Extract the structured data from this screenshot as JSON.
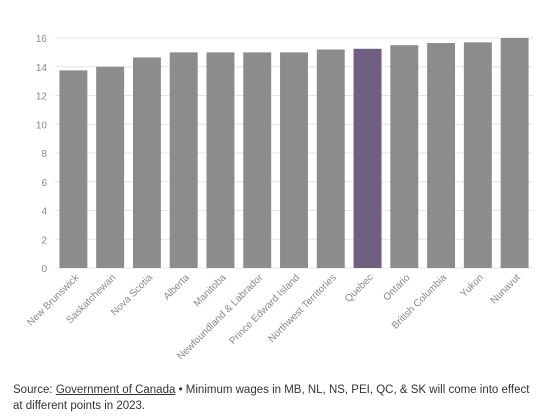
{
  "chart_data": {
    "type": "bar",
    "title": "",
    "xlabel": "",
    "ylabel": "",
    "ylim": [
      0,
      16
    ],
    "yticks": [
      0,
      2,
      4,
      6,
      8,
      10,
      12,
      14,
      16
    ],
    "grid": true,
    "categories": [
      "New Brunswick",
      "Saskatchewan",
      "Nova Scotia",
      "Alberta",
      "Manitoba",
      "Newfoundland & Labrador",
      "Prince Edward Island",
      "Northwest Territories",
      "Quebec",
      "Ontario",
      "British Columbia",
      "Yukon",
      "Nunavut"
    ],
    "values": [
      13.75,
      14.0,
      14.65,
      15.0,
      15.0,
      15.0,
      15.0,
      15.2,
      15.25,
      15.5,
      15.65,
      15.7,
      16.0
    ],
    "highlight": "Quebec",
    "colors": {
      "bar": "#8c8c8c",
      "highlight": "#725e82",
      "grid": "#e4e4e4",
      "tick_label": "#888888"
    }
  },
  "source": {
    "prefix": "Source: ",
    "link": "Government of Canada",
    "separator": " • ",
    "note": "Minimum wages in MB, NL, NS, PEI, QC, & SK will come into effect at different points in 2023."
  }
}
